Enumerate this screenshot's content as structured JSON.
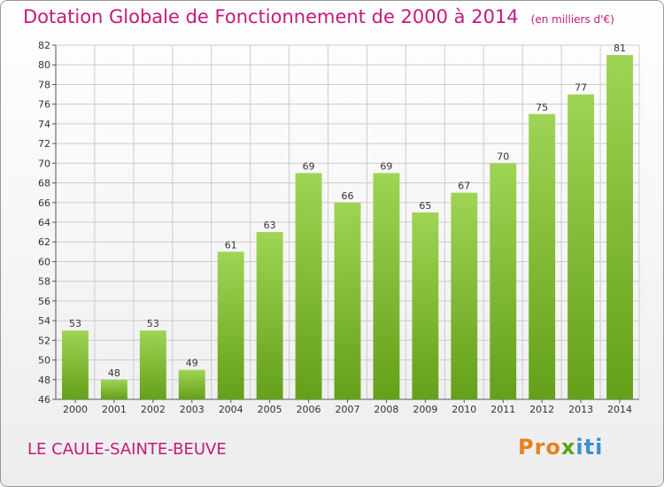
{
  "title": "Dotation Globale de Fonctionnement de 2000 à 2014",
  "subtitle": "(en milliers d'€)",
  "commune": "LE CAULE-SAINTE-BEUVE",
  "logo": {
    "part1": "Pro",
    "part2": "x",
    "part3": "iti"
  },
  "colors": {
    "title": "#c51a7c",
    "bar_light": "#9fd454",
    "bar_dark": "#64a019",
    "grid": "#cccccc"
  },
  "chart_data": {
    "type": "bar",
    "categories": [
      "2000",
      "2001",
      "2002",
      "2003",
      "2004",
      "2005",
      "2006",
      "2007",
      "2008",
      "2009",
      "2010",
      "2011",
      "2012",
      "2013",
      "2014"
    ],
    "values": [
      53,
      48,
      53,
      49,
      61,
      63,
      69,
      66,
      69,
      65,
      67,
      70,
      75,
      77,
      81
    ],
    "title": "Dotation Globale de Fonctionnement de 2000 à 2014",
    "subtitle": "(en milliers d'€)",
    "ylim": [
      46,
      82
    ],
    "yticks": [
      46,
      48,
      50,
      52,
      54,
      56,
      58,
      60,
      62,
      64,
      66,
      68,
      70,
      72,
      74,
      76,
      78,
      80,
      82
    ],
    "grid": true,
    "data_labels": true
  }
}
